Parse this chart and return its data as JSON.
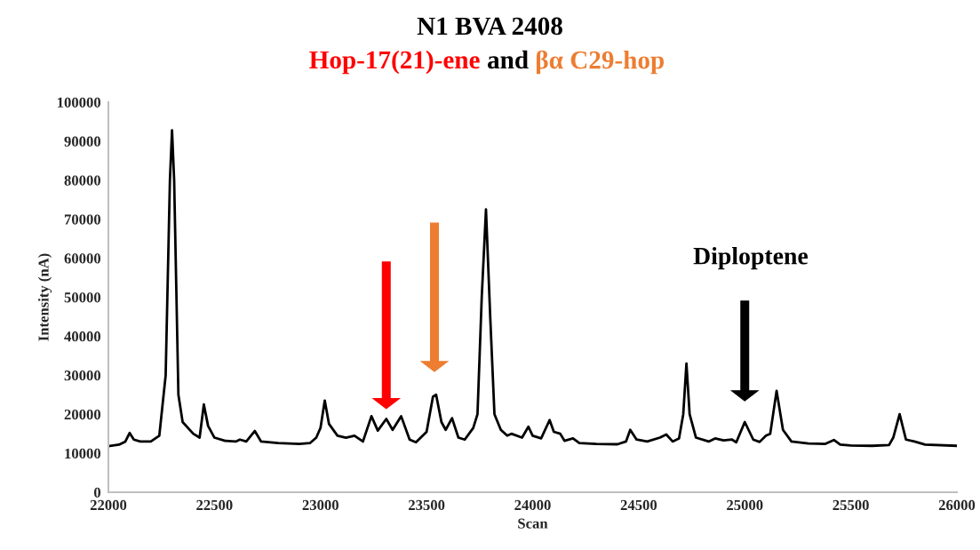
{
  "chart_data": {
    "type": "line",
    "title": "N1 BVA 2408",
    "subtitle": "Hop-17(21)-ene and βα C29-hop",
    "xlabel": "Scan",
    "ylabel": "Intensity (nA)",
    "x": [
      22000,
      22050,
      22080,
      22100,
      22120,
      22150,
      22200,
      22240,
      22270,
      22290,
      22300,
      22310,
      22330,
      22350,
      22400,
      22430,
      22450,
      22470,
      22500,
      22550,
      22600,
      22620,
      22650,
      22690,
      22720,
      22800,
      22900,
      22950,
      22980,
      23000,
      23020,
      23040,
      23080,
      23120,
      23160,
      23200,
      23240,
      23270,
      23310,
      23340,
      23380,
      23420,
      23450,
      23500,
      23530,
      23545,
      23570,
      23590,
      23620,
      23650,
      23680,
      23720,
      23740,
      23760,
      23780,
      23800,
      23820,
      23850,
      23880,
      23900,
      23950,
      23980,
      24000,
      24040,
      24080,
      24100,
      24130,
      24150,
      24190,
      24220,
      24300,
      24400,
      24440,
      24460,
      24490,
      24540,
      24600,
      24630,
      24660,
      24690,
      24710,
      24725,
      24740,
      24770,
      24830,
      24860,
      24900,
      24940,
      24960,
      25000,
      25040,
      25070,
      25100,
      25120,
      25150,
      25180,
      25220,
      25300,
      25380,
      25420,
      25450,
      25500,
      25600,
      25680,
      25700,
      25730,
      25760,
      25800,
      25850,
      26000
    ],
    "series": [
      {
        "color": "#000000",
        "values": [
          11800,
          12200,
          13000,
          15200,
          13500,
          13000,
          13000,
          14500,
          30000,
          80000,
          92800,
          80000,
          25000,
          18000,
          15000,
          14000,
          22500,
          17000,
          14000,
          13200,
          13000,
          13500,
          13000,
          15700,
          13000,
          12600,
          12400,
          12600,
          14000,
          16500,
          23500,
          17500,
          14500,
          14000,
          14500,
          13000,
          19500,
          15800,
          18800,
          16000,
          19500,
          13500,
          12800,
          15500,
          24500,
          25000,
          18000,
          16000,
          19000,
          14000,
          13500,
          16500,
          20000,
          50000,
          72500,
          45000,
          20000,
          16000,
          14500,
          15000,
          14000,
          16800,
          14500,
          13800,
          18500,
          15500,
          15000,
          13200,
          13800,
          12600,
          12400,
          12300,
          13000,
          16000,
          13500,
          13000,
          14000,
          14800,
          13000,
          13800,
          20000,
          33000,
          20000,
          14000,
          13000,
          13800,
          13300,
          13500,
          12800,
          18000,
          13500,
          12900,
          14500,
          15000,
          26000,
          16000,
          13000,
          12500,
          12400,
          13400,
          12200,
          12000,
          11900,
          12100,
          14000,
          20000,
          13500,
          13000,
          12200,
          11900
        ]
      }
    ],
    "xlim": [
      22000,
      26000
    ],
    "xticks": [
      22000,
      22500,
      23000,
      23500,
      24000,
      24500,
      25000,
      25500,
      26000
    ],
    "ylim": [
      0,
      100000
    ],
    "yticks": [
      0,
      10000,
      20000,
      30000,
      40000,
      50000,
      60000,
      70000,
      80000,
      90000,
      100000
    ],
    "annotations": [
      "Diploptene"
    ],
    "grid": false,
    "legend": false,
    "marker": "none",
    "line_style": "solid"
  }
}
